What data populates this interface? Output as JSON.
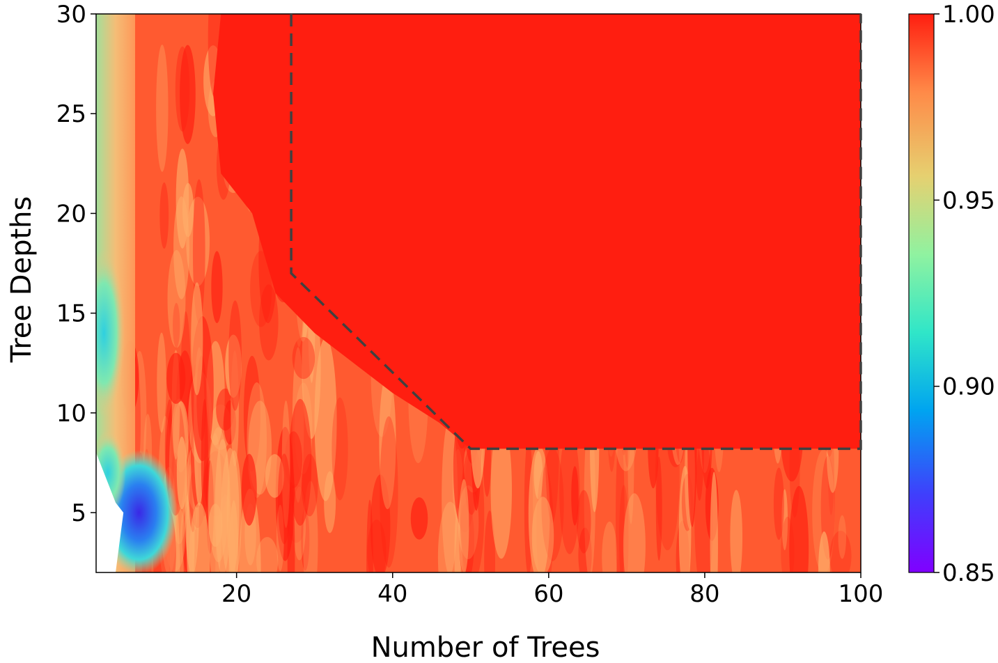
{
  "chart_data": {
    "type": "heatmap",
    "plot_kind": "filled-contour",
    "xlabel": "Number of Trees",
    "ylabel": "Tree Depths",
    "xlim": [
      2,
      100
    ],
    "ylim": [
      2,
      30
    ],
    "x_ticks": [
      20,
      40,
      60,
      80,
      100
    ],
    "y_ticks": [
      5,
      10,
      15,
      20,
      25,
      30
    ],
    "colormap": "rainbow",
    "colorbar": {
      "min": 0.85,
      "max": 1.0,
      "ticks": [
        "0.85",
        "0.90",
        "0.95",
        "1.00"
      ]
    },
    "region_colors": {
      "high": "#ff1e10",
      "mid": "#ff5a30",
      "low": "#ffae6a",
      "boundary_line": "#404040"
    },
    "grid": false,
    "z_summary": [
      {
        "region": "n_trees 50-100, depth 8-30",
        "value": 1.0
      },
      {
        "region": "n_trees 27-100, depth 17-30",
        "value": 1.0
      },
      {
        "region": "n_trees 12-100, depth 2-8",
        "value": 0.98
      },
      {
        "region": "n_trees 2-10, depth 10-30",
        "value": 0.96
      },
      {
        "region": "n_trees 4-10, depth 2-10",
        "value": 0.87
      }
    ],
    "optimal_region_boundary": {
      "style": "dashed",
      "points": [
        [
          27,
          30
        ],
        [
          27,
          17
        ],
        [
          50,
          8.2
        ],
        [
          100,
          8.2
        ],
        [
          100,
          30
        ]
      ]
    }
  }
}
